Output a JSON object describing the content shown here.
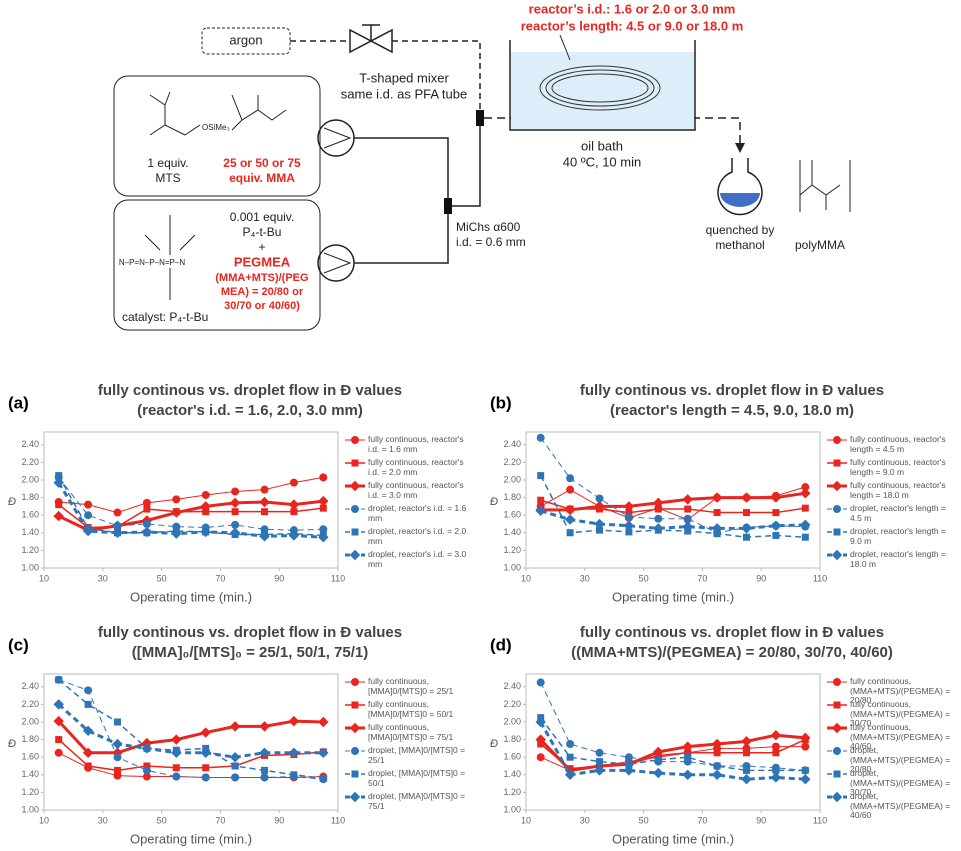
{
  "scheme": {
    "gas": "argon",
    "reactor_id": "reactor’s i.d.: 1.6 or 2.0 or 3.0 mm",
    "reactor_length": "reactor’s length: 4.5 or 9.0 or 18.0 m",
    "mixer": [
      "T-shaped mixer",
      "same i.d. as PFA tube"
    ],
    "bath": [
      "oil bath",
      "40 ºC, 10 min"
    ],
    "mts": [
      "1 equiv.",
      "MTS"
    ],
    "mma": [
      "25 or 50 or 75",
      "equiv. MMA"
    ],
    "catalyst_amount": [
      "0.001 equiv.",
      "P₄-t-Bu",
      "+"
    ],
    "pegmea": [
      "PEGMEA",
      "(MMA+MTS)/(PEG",
      "MEA) = 20/80 or",
      "30/70 or 40/60)"
    ],
    "catalyst": "catalyst: P₄-t-Bu",
    "micromixer": [
      "MiChs α600",
      "i.d. = 0.6 mm"
    ],
    "quench": [
      "quenched by",
      "methanol"
    ],
    "product": "polyMMA"
  },
  "chart_data": [
    {
      "type": "line",
      "label": "(a)",
      "title": "fully continous vs. droplet flow in Đ values",
      "subtitle": "(reactor's i.d. = 1.6, 2.0, 3.0 mm)",
      "xlabel": "Operating time (min.)",
      "ylabel": "Đ",
      "x": [
        15,
        25,
        35,
        45,
        55,
        65,
        75,
        85,
        95,
        105
      ],
      "xlim": [
        10,
        110
      ],
      "xticks": [
        10,
        30,
        50,
        70,
        90,
        110
      ],
      "ylim": [
        1,
        2.5
      ],
      "yticks": [
        {
          "value": 1,
          "label": "1.00"
        },
        {
          "value": 1.2,
          "label": "1.20"
        },
        {
          "value": 1.4,
          "label": "1.40"
        },
        {
          "value": 1.6,
          "label": "1.60"
        },
        {
          "value": 1.8,
          "label": "1.80"
        },
        {
          "value": 2,
          "label": "2.00"
        },
        {
          "value": 2.2,
          "label": "2.20"
        },
        {
          "value": 2.4,
          "label": "2.40"
        }
      ],
      "series": [
        {
          "name": "fully continuous, reactor's i.d. = 1.6 mm",
          "color": "#e8251f",
          "marker": "circle",
          "width": 1,
          "dash": false,
          "values": [
            1.75,
            1.72,
            1.63,
            1.74,
            1.78,
            1.83,
            1.87,
            1.89,
            1.97,
            2.03
          ]
        },
        {
          "name": "fully continuous, reactor's i.d. = 2.0 mm",
          "color": "#e8251f",
          "marker": "square",
          "width": 1.5,
          "dash": false,
          "values": [
            1.72,
            1.46,
            1.47,
            1.67,
            1.64,
            1.64,
            1.64,
            1.64,
            1.64,
            1.68
          ]
        },
        {
          "name": "fully continuous, reactor's i.d. = 3.0 mm",
          "color": "#e8251f",
          "marker": "diamond",
          "width": 3,
          "dash": false,
          "values": [
            1.59,
            1.43,
            1.48,
            1.54,
            1.63,
            1.7,
            1.74,
            1.75,
            1.72,
            1.76
          ]
        },
        {
          "name": "droplet, reactor's i.d. = 1.6 mm",
          "color": "#2e75b6",
          "marker": "circle",
          "width": 1,
          "dash": true,
          "values": [
            2.03,
            1.6,
            1.48,
            1.5,
            1.47,
            1.46,
            1.49,
            1.44,
            1.43,
            1.44
          ]
        },
        {
          "name": "droplet, reactor's i.d. = 2.0 mm",
          "color": "#2e75b6",
          "marker": "square",
          "width": 1.5,
          "dash": true,
          "values": [
            2.05,
            1.45,
            1.4,
            1.4,
            1.42,
            1.41,
            1.38,
            1.38,
            1.39,
            1.37
          ]
        },
        {
          "name": "droplet, reactor's i.d. = 3.0 mm",
          "color": "#2e75b6",
          "marker": "diamond",
          "width": 3,
          "dash": true,
          "values": [
            1.97,
            1.42,
            1.4,
            1.41,
            1.39,
            1.41,
            1.4,
            1.36,
            1.37,
            1.35
          ]
        }
      ]
    },
    {
      "type": "line",
      "label": "(b)",
      "title": "fully continous vs. droplet flow in Đ values",
      "subtitle": "(reactor's length = 4.5, 9.0, 18.0 m)",
      "xlabel": "Operating time (min.)",
      "ylabel": "Đ",
      "x": [
        15,
        25,
        35,
        45,
        55,
        65,
        75,
        85,
        95,
        105
      ],
      "xlim": [
        10,
        110
      ],
      "xticks": [
        10,
        30,
        50,
        70,
        90,
        110
      ],
      "ylim": [
        1,
        2.5
      ],
      "yticks": [
        {
          "value": 1,
          "label": "1.00"
        },
        {
          "value": 1.2,
          "label": "1.20"
        },
        {
          "value": 1.4,
          "label": "1.40"
        },
        {
          "value": 1.6,
          "label": "1.60"
        },
        {
          "value": 1.8,
          "label": "1.80"
        },
        {
          "value": 2,
          "label": "2.00"
        },
        {
          "value": 2.2,
          "label": "2.20"
        },
        {
          "value": 2.4,
          "label": "2.40"
        }
      ],
      "series": [
        {
          "name": "fully continuous, reactor's length = 4.5 m",
          "color": "#e8251f",
          "marker": "circle",
          "width": 1,
          "dash": false,
          "values": [
            1.7,
            1.89,
            1.7,
            1.57,
            1.68,
            1.55,
            1.8,
            1.8,
            1.82,
            1.92
          ]
        },
        {
          "name": "fully continuous, reactor's length = 9.0 m",
          "color": "#e8251f",
          "marker": "square",
          "width": 1.5,
          "dash": false,
          "values": [
            1.77,
            1.67,
            1.67,
            1.63,
            1.67,
            1.67,
            1.63,
            1.63,
            1.63,
            1.68
          ]
        },
        {
          "name": "fully continuous, reactor's length = 18.0 m",
          "color": "#e8251f",
          "marker": "diamond",
          "width": 3,
          "dash": false,
          "values": [
            1.66,
            1.66,
            1.7,
            1.7,
            1.74,
            1.78,
            1.8,
            1.8,
            1.8,
            1.85
          ]
        },
        {
          "name": "droplet, reactor's length = 4.5 m",
          "color": "#2e75b6",
          "marker": "circle",
          "width": 1,
          "dash": true,
          "values": [
            2.48,
            2.02,
            1.79,
            1.58,
            1.56,
            1.56,
            1.4,
            1.46,
            1.48,
            1.47
          ]
        },
        {
          "name": "droplet, reactor's length = 9.0 m",
          "color": "#2e75b6",
          "marker": "square",
          "width": 1.5,
          "dash": true,
          "values": [
            2.05,
            1.4,
            1.43,
            1.41,
            1.43,
            1.42,
            1.39,
            1.35,
            1.37,
            1.35
          ]
        },
        {
          "name": "droplet, reactor's length = 18.0 m",
          "color": "#2e75b6",
          "marker": "diamond",
          "width": 3,
          "dash": true,
          "values": [
            1.65,
            1.55,
            1.5,
            1.48,
            1.45,
            1.47,
            1.45,
            1.45,
            1.48,
            1.49
          ]
        }
      ]
    },
    {
      "type": "line",
      "label": "(c)",
      "title": "fully continous vs. droplet flow in Đ values",
      "subtitle": "([MMA]₀/[MTS]₀ = 25/1, 50/1, 75/1)",
      "xlabel": "Operating time (min.)",
      "ylabel": "Đ",
      "x": [
        15,
        25,
        35,
        45,
        55,
        65,
        75,
        85,
        95,
        105
      ],
      "xlim": [
        10,
        110
      ],
      "xticks": [
        10,
        30,
        50,
        70,
        90,
        110
      ],
      "ylim": [
        1,
        2.5
      ],
      "yticks": [
        {
          "value": 1,
          "label": "1.00"
        },
        {
          "value": 1.2,
          "label": "1.20"
        },
        {
          "value": 1.4,
          "label": "1.40"
        },
        {
          "value": 1.6,
          "label": "1.60"
        },
        {
          "value": 1.8,
          "label": "1.80"
        },
        {
          "value": 2,
          "label": "2.00"
        },
        {
          "value": 2.2,
          "label": "2.20"
        },
        {
          "value": 2.4,
          "label": "2.40"
        }
      ],
      "series": [
        {
          "name": "fully continuous, [MMA]0/[MTS]0 = 25/1",
          "color": "#e8251f",
          "marker": "circle",
          "width": 1,
          "dash": false,
          "values": [
            1.65,
            1.48,
            1.39,
            1.38,
            1.38,
            1.37,
            1.37,
            1.37,
            1.37,
            1.38
          ]
        },
        {
          "name": "fully continuous, [MMA]0/[MTS]0 = 50/1",
          "color": "#e8251f",
          "marker": "square",
          "width": 1.5,
          "dash": false,
          "values": [
            1.8,
            1.5,
            1.45,
            1.5,
            1.48,
            1.48,
            1.5,
            1.62,
            1.63,
            1.66
          ]
        },
        {
          "name": "fully continuous, [MMA]0/[MTS]0 = 75/1",
          "color": "#e8251f",
          "marker": "diamond",
          "width": 3,
          "dash": false,
          "values": [
            2.01,
            1.65,
            1.65,
            1.76,
            1.8,
            1.88,
            1.95,
            1.95,
            2.01,
            2.0
          ]
        },
        {
          "name": "droplet, [MMA]0/[MTS]0 = 25/1",
          "color": "#2e75b6",
          "marker": "circle",
          "width": 1,
          "dash": true,
          "values": [
            2.48,
            2.36,
            1.6,
            1.45,
            1.38,
            1.37,
            1.37,
            1.37,
            1.38,
            1.35
          ]
        },
        {
          "name": "droplet, [MMA]0/[MTS]0 = 50/1",
          "color": "#2e75b6",
          "marker": "square",
          "width": 1.5,
          "dash": true,
          "values": [
            2.48,
            2.2,
            2.0,
            1.7,
            1.68,
            1.7,
            1.5,
            1.45,
            1.4,
            1.36
          ]
        },
        {
          "name": "droplet, [MMA]0/[MTS]0 = 75/1",
          "color": "#2e75b6",
          "marker": "diamond",
          "width": 3,
          "dash": true,
          "values": [
            2.2,
            1.9,
            1.75,
            1.7,
            1.65,
            1.65,
            1.6,
            1.65,
            1.65,
            1.65
          ]
        }
      ]
    },
    {
      "type": "line",
      "label": "(d)",
      "title": "fully continous vs. droplet flow in Đ values",
      "subtitle": "((MMA+MTS)/(PEGMEA) = 20/80, 30/70, 40/60)",
      "xlabel": "Operating time (min.)",
      "ylabel": "Đ",
      "x": [
        15,
        25,
        35,
        45,
        55,
        65,
        75,
        85,
        95,
        105
      ],
      "xlim": [
        10,
        110
      ],
      "xticks": [
        10,
        30,
        50,
        70,
        90,
        110
      ],
      "ylim": [
        1,
        2.5
      ],
      "yticks": [
        {
          "value": 1,
          "label": "1.00"
        },
        {
          "value": 1.2,
          "label": "1.20"
        },
        {
          "value": 1.4,
          "label": "1.40"
        },
        {
          "value": 1.6,
          "label": "1.60"
        },
        {
          "value": 1.8,
          "label": "1.80"
        },
        {
          "value": 2,
          "label": "2.00"
        },
        {
          "value": 2.2,
          "label": "2.20"
        },
        {
          "value": 2.4,
          "label": "2.40"
        }
      ],
      "series": [
        {
          "name": "fully continuous, (MMA+MTS)/(PEGMEA) = 20/80",
          "color": "#e8251f",
          "marker": "circle",
          "width": 1,
          "dash": false,
          "values": [
            1.6,
            1.45,
            1.5,
            1.55,
            1.6,
            1.65,
            1.7,
            1.7,
            1.72,
            1.72
          ]
        },
        {
          "name": "fully continuous, (MMA+MTS)/(PEGMEA) = 30/70",
          "color": "#e8251f",
          "marker": "square",
          "width": 1.5,
          "dash": false,
          "values": [
            1.75,
            1.47,
            1.5,
            1.52,
            1.62,
            1.65,
            1.65,
            1.65,
            1.65,
            1.8
          ]
        },
        {
          "name": "fully continuous, (MMA+MTS)/(PEGMEA) = 40/60",
          "color": "#e8251f",
          "marker": "diamond",
          "width": 3,
          "dash": false,
          "values": [
            1.8,
            1.45,
            1.5,
            1.52,
            1.66,
            1.72,
            1.75,
            1.78,
            1.85,
            1.82
          ]
        },
        {
          "name": "droplet, (MMA+MTS)/(PEGMEA) = 20/80",
          "color": "#2e75b6",
          "marker": "circle",
          "width": 1,
          "dash": true,
          "values": [
            2.45,
            1.75,
            1.65,
            1.6,
            1.55,
            1.55,
            1.5,
            1.5,
            1.48,
            1.45
          ]
        },
        {
          "name": "droplet, (MMA+MTS)/(PEGMEA) = 30/70",
          "color": "#2e75b6",
          "marker": "square",
          "width": 1.5,
          "dash": true,
          "values": [
            2.05,
            1.6,
            1.55,
            1.52,
            1.57,
            1.6,
            1.5,
            1.45,
            1.45,
            1.45
          ]
        },
        {
          "name": "droplet, (MMA+MTS)/(PEGMEA) = 40/60",
          "color": "#2e75b6",
          "marker": "diamond",
          "width": 3,
          "dash": true,
          "values": [
            2.0,
            1.4,
            1.45,
            1.45,
            1.42,
            1.4,
            1.4,
            1.35,
            1.37,
            1.35
          ]
        }
      ]
    }
  ]
}
